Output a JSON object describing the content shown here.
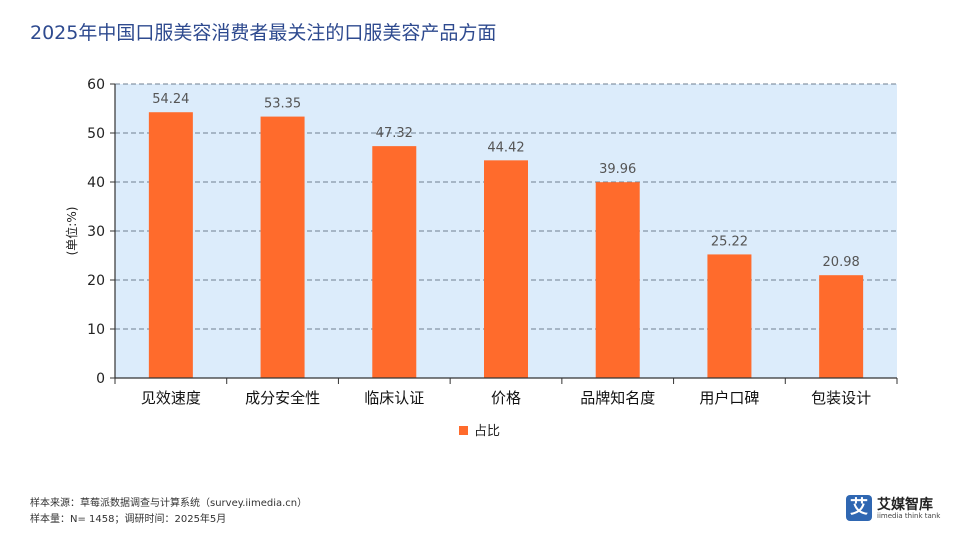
{
  "page": {
    "title": "2025年中国口服美容消费者最关注的口服美容产品方面",
    "source_line": "样本来源：草莓派数据调查与计算系统（survey.iimedia.cn）",
    "sample_line": "样本量：N= 1458；调研时间：2025年5月"
  },
  "logo": {
    "glyph": "艾",
    "name": "艾媒智库",
    "subtitle": "iimedia think tank"
  },
  "chart_data": {
    "type": "bar",
    "categories": [
      "见效速度",
      "成分安全性",
      "临床认证",
      "价格",
      "品牌知名度",
      "用户口碑",
      "包装设计"
    ],
    "series": [
      {
        "name": "占比",
        "values": [
          54.24,
          53.35,
          47.32,
          44.42,
          39.96,
          25.22,
          20.98
        ],
        "color": "#ff6b2c"
      }
    ],
    "value_labels": [
      "54.24",
      "53.35",
      "47.32",
      "44.42",
      "39.96",
      "25.22",
      "20.98"
    ],
    "ylabel": "(单位:%)",
    "xlabel": "",
    "ylim": [
      0,
      60
    ],
    "yticks": [
      0,
      10,
      20,
      30,
      40,
      50,
      60
    ],
    "grid": true,
    "plot_background": "#dcecfb",
    "legend_position": "bottom-center"
  }
}
